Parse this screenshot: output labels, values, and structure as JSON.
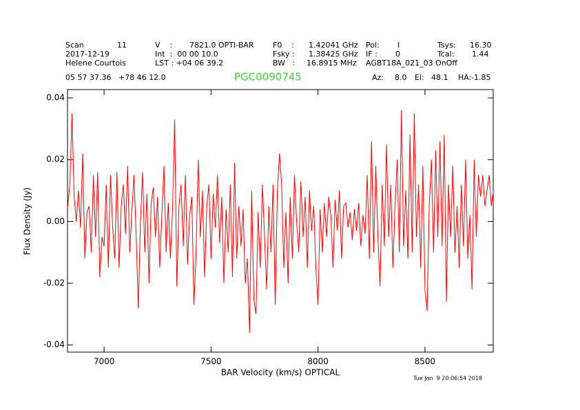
{
  "chart_data": {
    "type": "line",
    "title": "PGC0090745",
    "title_color": "#33dd33",
    "header": [
      {
        "text": "Scan",
        "row": 0,
        "col": 95
      },
      {
        "text": "11",
        "row": 0,
        "col": 170
      },
      {
        "text": "V    :",
        "row": 0,
        "col": 225
      },
      {
        "text": "7821.0 OPTI-BAR",
        "row": 0,
        "col": 275
      },
      {
        "text": "F0    :",
        "row": 0,
        "col": 396
      },
      {
        "text": "1.42041 GHz",
        "row": 0,
        "col": 448
      },
      {
        "text": "Pol:",
        "row": 0,
        "col": 531
      },
      {
        "text": "I",
        "row": 0,
        "col": 577
      },
      {
        "text": "Tsys:",
        "row": 0,
        "col": 635
      },
      {
        "text": "16.30",
        "row": 0,
        "col": 682
      },
      {
        "text": "2017-12-19",
        "row": 1,
        "col": 95
      },
      {
        "text": "Int  :  00 00 10.0",
        "row": 1,
        "col": 225
      },
      {
        "text": "Fsky :",
        "row": 1,
        "col": 396
      },
      {
        "text": "1.38425 GHz",
        "row": 1,
        "col": 448
      },
      {
        "text": "IF :",
        "row": 1,
        "col": 531
      },
      {
        "text": "0",
        "row": 1,
        "col": 574
      },
      {
        "text": "Tcal:",
        "row": 1,
        "col": 635
      },
      {
        "text": "1.44",
        "row": 1,
        "col": 685
      },
      {
        "text": "Helene Courtois",
        "row": 2,
        "col": 95
      },
      {
        "text": "LST : +04 06 39.2",
        "row": 2,
        "col": 225
      },
      {
        "text": "BW   :",
        "row": 2,
        "col": 396
      },
      {
        "text": "16.8915 MHz",
        "row": 2,
        "col": 445
      },
      {
        "text": "AGBT18A_021_03 OnOff",
        "row": 2,
        "col": 531
      },
      {
        "text": "05 57 37.36   +78 46 12.0",
        "row": 3,
        "col": 95
      },
      {
        "text": "Az:",
        "row": 3,
        "col": 540
      },
      {
        "text": "8.0",
        "row": 3,
        "col": 573
      },
      {
        "text": "El:",
        "row": 3,
        "col": 602
      },
      {
        "text": "48.1",
        "row": 3,
        "col": 626
      },
      {
        "text": "HA:",
        "row": 3,
        "col": 665
      },
      {
        "text": "-1.85",
        "row": 3,
        "col": 684
      }
    ],
    "date": "Tue Jan  9 20:06:54 2018",
    "xlabel": "BAR Velocity (km/s) OPTICAL",
    "ylabel": "Flux Density (Jy)",
    "xlim": [
      6829,
      8819
    ],
    "ylim": [
      -0.0423,
      0.0427
    ],
    "xticks": [
      7000,
      7500,
      8000,
      8500
    ],
    "yticks": [
      -0.04,
      -0.02,
      {
        "value": 0,
        "label": "0.00"
      },
      0.02,
      0.04
    ],
    "x": [
      6830,
      6840,
      6850,
      6860,
      6870,
      6880,
      6890,
      6900,
      6910,
      6920,
      6930,
      6940,
      6950,
      6960,
      6970,
      6980,
      6990,
      7000,
      7010,
      7020,
      7030,
      7040,
      7050,
      7060,
      7070,
      7080,
      7090,
      7100,
      7110,
      7120,
      7130,
      7140,
      7150,
      7160,
      7170,
      7180,
      7190,
      7200,
      7210,
      7220,
      7230,
      7240,
      7250,
      7260,
      7270,
      7280,
      7290,
      7300,
      7310,
      7320,
      7330,
      7340,
      7350,
      7360,
      7370,
      7380,
      7390,
      7400,
      7410,
      7420,
      7430,
      7440,
      7450,
      7460,
      7470,
      7480,
      7490,
      7500,
      7510,
      7520,
      7530,
      7540,
      7550,
      7560,
      7570,
      7580,
      7590,
      7600,
      7610,
      7620,
      7630,
      7640,
      7650,
      7660,
      7670,
      7680,
      7690,
      7700,
      7710,
      7720,
      7730,
      7740,
      7750,
      7760,
      7770,
      7780,
      7790,
      7800,
      7810,
      7820,
      7830,
      7840,
      7850,
      7860,
      7870,
      7880,
      7890,
      7900,
      7910,
      7920,
      7930,
      7940,
      7950,
      7960,
      7970,
      7980,
      7990,
      8000,
      8010,
      8020,
      8030,
      8040,
      8050,
      8060,
      8070,
      8080,
      8090,
      8100,
      8110,
      8120,
      8130,
      8140,
      8150,
      8160,
      8170,
      8180,
      8190,
      8200,
      8210,
      8220,
      8230,
      8240,
      8250,
      8260,
      8270,
      8280,
      8290,
      8300,
      8310,
      8320,
      8330,
      8340,
      8350,
      8360,
      8370,
      8380,
      8390,
      8400,
      8410,
      8420,
      8430,
      8440,
      8450,
      8460,
      8470,
      8480,
      8490,
      8500,
      8510,
      8520,
      8530,
      8540,
      8550,
      8560,
      8570,
      8580,
      8590,
      8600,
      8610,
      8620,
      8630,
      8640,
      8650,
      8660,
      8670,
      8680,
      8690,
      8700,
      8710,
      8720,
      8730,
      8740,
      8750,
      8760,
      8770,
      8780,
      8790,
      8800,
      8810,
      8820
    ],
    "series": [
      {
        "color": "#ff0000",
        "values": [
          0.005,
          0.012,
          0.035,
          0.008,
          0.0,
          0.01,
          -0.002,
          0.022,
          -0.012,
          0.003,
          0.005,
          -0.01,
          0.015,
          -0.005,
          0.016,
          -0.018,
          -0.005,
          -0.008,
          0.012,
          -0.015,
          0.015,
          -0.002,
          -0.012,
          0.016,
          -0.015,
          0.005,
          0.012,
          -0.004,
          0.018,
          -0.01,
          0.004,
          0.015,
          -0.005,
          -0.028,
          0.0,
          0.016,
          -0.01,
          0.009,
          -0.02,
          0.006,
          0.011,
          -0.005,
          0.008,
          -0.015,
          0.002,
          0.018,
          -0.01,
          0.006,
          -0.012,
          0.004,
          0.033,
          -0.021,
          0.005,
          0.012,
          -0.008,
          0.015,
          -0.014,
          0.002,
          0.008,
          -0.027,
          -0.01,
          0.02,
          -0.005,
          0.01,
          -0.018,
          0.005,
          0.012,
          -0.012,
          0.009,
          -0.002,
          0.015,
          -0.007,
          0.008,
          -0.02,
          0.004,
          -0.01,
          0.012,
          -0.018,
          0.019,
          -0.012,
          0.005,
          -0.008,
          0.004,
          -0.02,
          -0.012,
          -0.036,
          0.01,
          -0.025,
          -0.03,
          0.003,
          -0.015,
          0.012,
          -0.005,
          -0.022,
          0.005,
          -0.01,
          0.012,
          -0.027,
          0.01,
          0.022,
          0.012,
          -0.015,
          0.003,
          -0.02,
          0.008,
          -0.012,
          0.015,
          0.0,
          -0.01,
          0.013,
          -0.005,
          0.008,
          -0.015,
          0.01,
          -0.003,
          0.005,
          -0.015,
          -0.027,
          0.004,
          -0.01,
          0.006,
          -0.005,
          0.008,
          0.002,
          -0.015,
          0.007,
          -0.003,
          0.01,
          -0.012,
          0.005,
          0.006,
          -0.002,
          0.003,
          -0.006,
          0.004,
          -0.003,
          0.006,
          -0.008,
          0.002,
          -0.004,
          0.015,
          -0.012,
          0.026,
          -0.01,
          0.018,
          -0.005,
          -0.021,
          0.012,
          -0.008,
          0.025,
          -0.005,
          0.012,
          -0.015,
          0.005,
          0.02,
          -0.01,
          0.036,
          -0.008,
          0.01,
          -0.012,
          0.028,
          -0.01,
          0.035,
          -0.005,
          0.012,
          -0.015,
          0.018,
          -0.022,
          -0.029,
          0.005,
          0.02,
          -0.01,
          0.023,
          -0.005,
          0.026,
          -0.008,
          0.028,
          -0.026,
          0.012,
          -0.005,
          0.018,
          -0.01,
          0.005,
          -0.015,
          0.012,
          -0.008,
          0.02,
          -0.012,
          0.002,
          -0.022,
          0.02,
          -0.005,
          0.015,
          0.008,
          0.015,
          0.005,
          0.01,
          0.015,
          0.005,
          0.01
        ]
      }
    ]
  }
}
